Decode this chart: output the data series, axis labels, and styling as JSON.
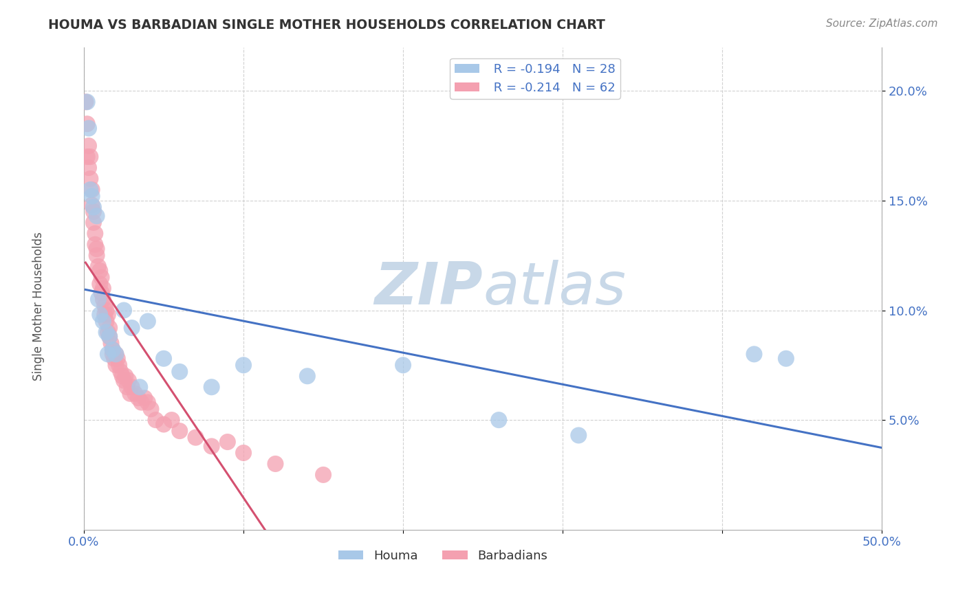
{
  "title": "HOUMA VS BARBADIAN SINGLE MOTHER HOUSEHOLDS CORRELATION CHART",
  "source_text": "Source: ZipAtlas.com",
  "ylabel": "Single Mother Households",
  "xlim": [
    0.0,
    0.5
  ],
  "ylim": [
    0.0,
    0.22
  ],
  "yticks": [
    0.05,
    0.1,
    0.15,
    0.2
  ],
  "ytick_labels": [
    "5.0%",
    "10.0%",
    "15.0%",
    "20.0%"
  ],
  "xtick_positions": [
    0.0,
    0.1,
    0.2,
    0.3,
    0.4,
    0.5
  ],
  "xtick_labels_bottom": [
    "0.0%",
    "",
    "",
    "",
    "",
    "50.0%"
  ],
  "houma_color": "#a8c8e8",
  "barbadian_color": "#f4a0b0",
  "houma_line_color": "#4472c4",
  "barbadian_line_color": "#d45070",
  "legend_text_color": "#4472c4",
  "grid_color": "#cccccc",
  "watermark_color": "#c8d8e8",
  "houma_R": -0.194,
  "houma_N": 28,
  "barbadian_R": -0.214,
  "barbadian_N": 62,
  "houma_scatter_x": [
    0.002,
    0.003,
    0.004,
    0.005,
    0.006,
    0.008,
    0.009,
    0.01,
    0.012,
    0.014,
    0.016,
    0.018,
    0.02,
    0.025,
    0.03,
    0.04,
    0.05,
    0.06,
    0.08,
    0.1,
    0.14,
    0.2,
    0.26,
    0.31,
    0.42,
    0.44,
    0.015,
    0.035
  ],
  "houma_scatter_y": [
    0.195,
    0.183,
    0.155,
    0.152,
    0.147,
    0.143,
    0.105,
    0.098,
    0.095,
    0.09,
    0.088,
    0.082,
    0.08,
    0.1,
    0.092,
    0.095,
    0.078,
    0.072,
    0.065,
    0.075,
    0.07,
    0.075,
    0.05,
    0.043,
    0.08,
    0.078,
    0.08,
    0.065
  ],
  "barbadian_scatter_x": [
    0.001,
    0.002,
    0.002,
    0.003,
    0.003,
    0.004,
    0.004,
    0.005,
    0.005,
    0.006,
    0.006,
    0.007,
    0.007,
    0.008,
    0.008,
    0.009,
    0.01,
    0.01,
    0.011,
    0.011,
    0.012,
    0.012,
    0.013,
    0.013,
    0.014,
    0.014,
    0.015,
    0.015,
    0.016,
    0.016,
    0.017,
    0.018,
    0.018,
    0.019,
    0.02,
    0.02,
    0.021,
    0.022,
    0.023,
    0.024,
    0.025,
    0.026,
    0.027,
    0.028,
    0.029,
    0.03,
    0.032,
    0.034,
    0.036,
    0.038,
    0.04,
    0.042,
    0.045,
    0.05,
    0.055,
    0.06,
    0.07,
    0.08,
    0.09,
    0.1,
    0.12,
    0.15
  ],
  "barbadian_scatter_y": [
    0.195,
    0.185,
    0.17,
    0.175,
    0.165,
    0.17,
    0.16,
    0.155,
    0.148,
    0.145,
    0.14,
    0.135,
    0.13,
    0.128,
    0.125,
    0.12,
    0.118,
    0.112,
    0.115,
    0.108,
    0.11,
    0.105,
    0.102,
    0.098,
    0.1,
    0.095,
    0.098,
    0.09,
    0.092,
    0.088,
    0.085,
    0.082,
    0.08,
    0.078,
    0.08,
    0.075,
    0.078,
    0.075,
    0.072,
    0.07,
    0.068,
    0.07,
    0.065,
    0.068,
    0.062,
    0.065,
    0.062,
    0.06,
    0.058,
    0.06,
    0.058,
    0.055,
    0.05,
    0.048,
    0.05,
    0.045,
    0.042,
    0.038,
    0.04,
    0.035,
    0.03,
    0.025
  ]
}
